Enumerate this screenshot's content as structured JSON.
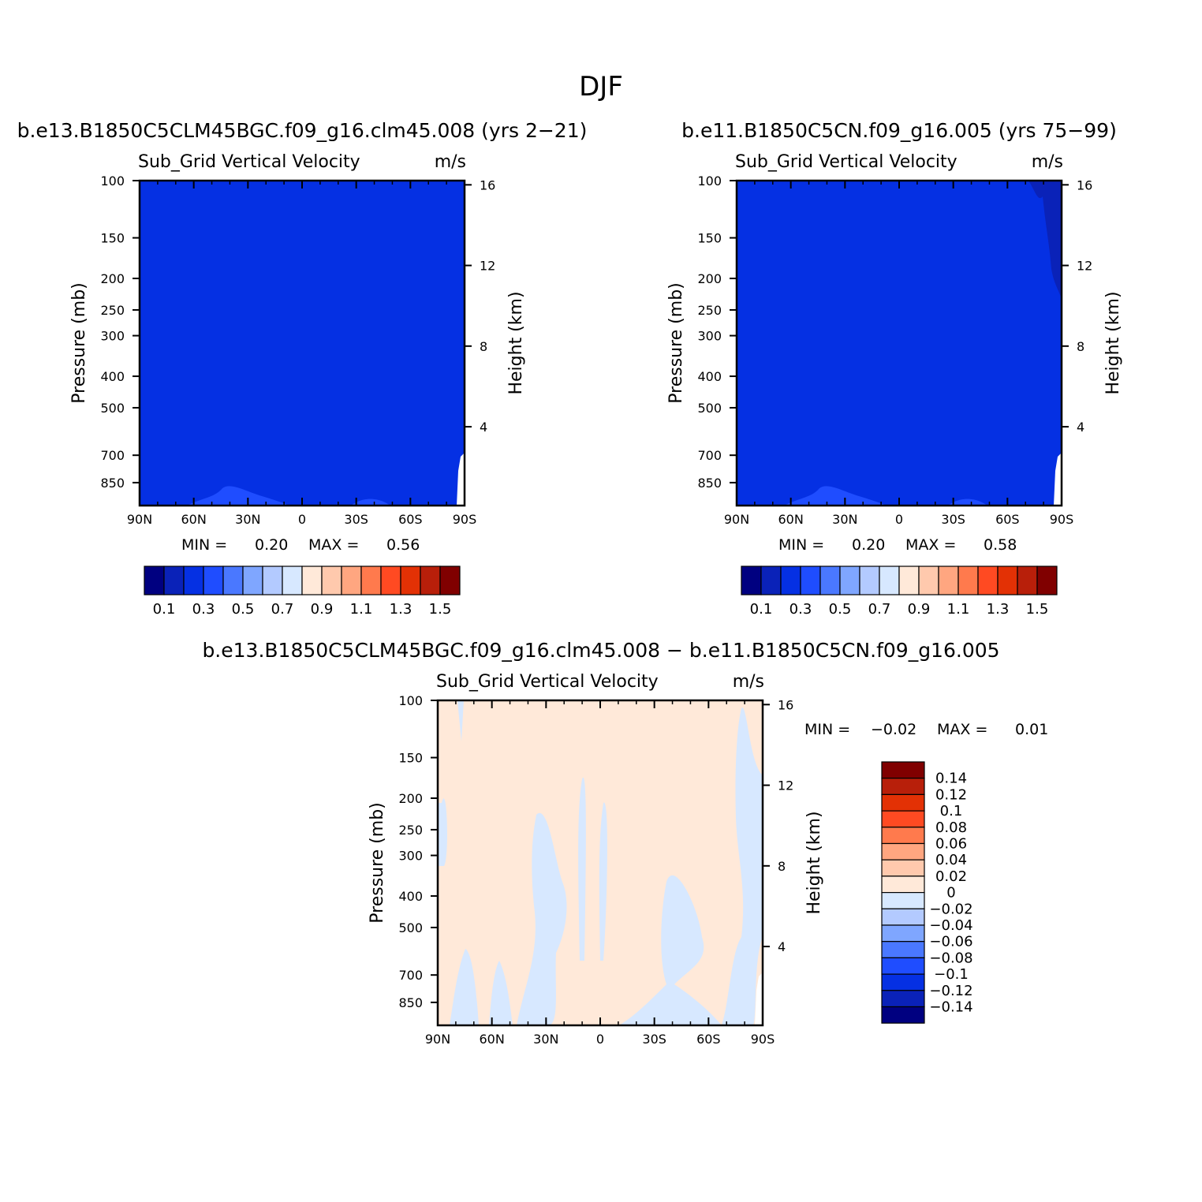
{
  "figure_title": "DJF",
  "chart_data": [
    {
      "type": "heatmap",
      "id": "test",
      "case_title": "b.e13.B1850C5CLM45BGC.f09_g16.clm45.008 (yrs 2-21)",
      "variable": "Sub_Grid Vertical Velocity",
      "units": "m/s",
      "xlabel": "",
      "ylabel": "Pressure (mb)",
      "ylabel_right": "Height (km)",
      "x_ticks": [
        "90N",
        "60N",
        "30N",
        "0",
        "30S",
        "60S",
        "90S"
      ],
      "y_ticks": [
        "100",
        "150",
        "200",
        "250",
        "300",
        "400",
        "500",
        "700",
        "850"
      ],
      "y_ticks_right": [
        "16",
        "12",
        "8",
        "4"
      ],
      "ylim": [
        100,
        1000
      ],
      "min_label": "MIN =",
      "min_value": "0.20",
      "max_label": "MAX =",
      "max_value": "0.56",
      "colorbar_levels": [
        "0.1",
        "0.3",
        "0.5",
        "0.7",
        "0.9",
        "1.1",
        "1.3",
        "1.5"
      ],
      "colorbar_orientation": "horizontal",
      "dominant_range": "0.2 to 0.3",
      "near_surface_range": "0.3 to 0.4"
    },
    {
      "type": "heatmap",
      "id": "control",
      "case_title": "b.e11.B1850C5CN.f09_g16.005 (yrs 75-99)",
      "variable": "Sub_Grid Vertical Velocity",
      "units": "m/s",
      "xlabel": "",
      "ylabel": "Pressure (mb)",
      "ylabel_right": "Height (km)",
      "x_ticks": [
        "90N",
        "60N",
        "30N",
        "0",
        "30S",
        "60S",
        "90S"
      ],
      "y_ticks": [
        "100",
        "150",
        "200",
        "250",
        "300",
        "400",
        "500",
        "700",
        "850"
      ],
      "y_ticks_right": [
        "16",
        "12",
        "8",
        "4"
      ],
      "ylim": [
        100,
        1000
      ],
      "min_label": "MIN =",
      "min_value": "0.20",
      "max_label": "MAX =",
      "max_value": "0.58",
      "colorbar_levels": [
        "0.1",
        "0.3",
        "0.5",
        "0.7",
        "0.9",
        "1.1",
        "1.3",
        "1.5"
      ],
      "colorbar_orientation": "horizontal",
      "dominant_range": "0.2 to 0.3",
      "near_surface_range": "0.3 to 0.4"
    },
    {
      "type": "heatmap",
      "id": "difference",
      "case_title": "b.e13.B1850C5CLM45BGC.f09_g16.clm45.008 - b.e11.B1850C5CN.f09_g16.005",
      "variable": "Sub_Grid Vertical Velocity",
      "units": "m/s",
      "xlabel": "",
      "ylabel": "Pressure (mb)",
      "ylabel_right": "Height (km)",
      "x_ticks": [
        "90N",
        "60N",
        "30N",
        "0",
        "30S",
        "60S",
        "90S"
      ],
      "y_ticks": [
        "100",
        "150",
        "200",
        "250",
        "300",
        "400",
        "500",
        "700",
        "850"
      ],
      "y_ticks_right": [
        "16",
        "12",
        "8",
        "4"
      ],
      "ylim": [
        100,
        1000
      ],
      "min_label": "MIN =",
      "min_value": "-0.02",
      "max_label": "MAX =",
      "max_value": "0.01",
      "colorbar_levels": [
        "0.14",
        "0.12",
        "0.1",
        "0.08",
        "0.06",
        "0.04",
        "0.02",
        "0",
        "-0.02",
        "-0.04",
        "-0.06",
        "-0.08",
        "-0.1",
        "-0.12",
        "-0.14"
      ],
      "colorbar_orientation": "vertical",
      "dominant_range": "0 to 0.02",
      "secondary_range": "-0.02 to 0"
    }
  ],
  "palettes": {
    "absolute": [
      "#000080",
      "#0a22b8",
      "#0530e3",
      "#1f4dff",
      "#4a78ff",
      "#7fa6ff",
      "#b3caff",
      "#d7e8ff",
      "#ffe9d9",
      "#ffc9ad",
      "#ffa680",
      "#ff7a4d",
      "#ff4a22",
      "#e33105",
      "#b81f0a",
      "#800000"
    ],
    "difference": [
      "#000080",
      "#0a22b8",
      "#0530e3",
      "#1f4dff",
      "#4a78ff",
      "#7fa6ff",
      "#b3caff",
      "#d7e8ff",
      "#ffe9d9",
      "#ffc9ad",
      "#ffa680",
      "#ff7a4d",
      "#ff4a22",
      "#e33105",
      "#b81f0a",
      "#800000"
    ]
  }
}
